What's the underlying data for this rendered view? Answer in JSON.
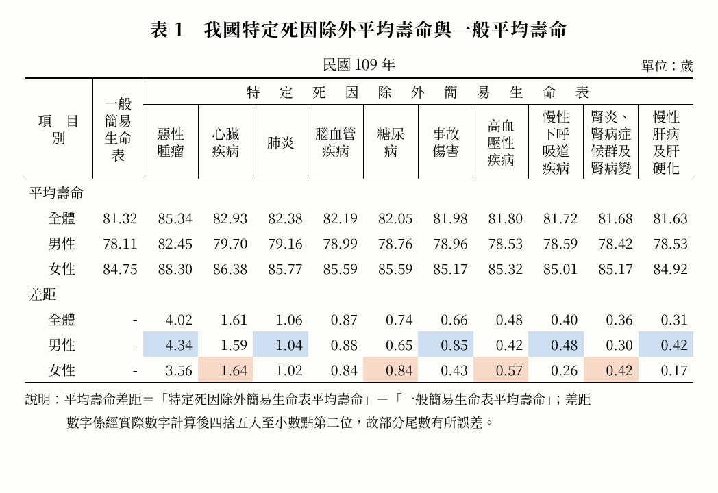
{
  "title": "表 1　我國特定死因除外平均壽命與一般平均壽命",
  "subtitle": "民國 109 年",
  "unit": "單位：歲",
  "rowhead": "項　目　別",
  "col_general": "一般\n簡易\n生命\n表",
  "span_label": "特定死因除外簡易生命表",
  "causes": [
    "惡性\n腫瘤",
    "心臟\n疾病",
    "肺炎",
    "腦血管\n疾病",
    "糖尿\n病",
    "事故\n傷害",
    "高血\n壓性\n疾病",
    "慢性\n下呼\n吸道\n疾病",
    "腎炎、\n腎病症\n候群及\n腎病變",
    "慢性\n肝病\n及肝\n硬化"
  ],
  "section1": "平均壽命",
  "section2": "差距",
  "labels": {
    "all": "全體",
    "m": "男性",
    "f": "女性"
  },
  "life": {
    "all": [
      "81.32",
      "85.34",
      "82.93",
      "82.38",
      "82.19",
      "82.05",
      "81.98",
      "81.80",
      "81.72",
      "81.68",
      "81.63"
    ],
    "m": [
      "78.11",
      "82.45",
      "79.70",
      "79.16",
      "78.99",
      "78.76",
      "78.96",
      "78.53",
      "78.59",
      "78.42",
      "78.53"
    ],
    "f": [
      "84.75",
      "88.30",
      "86.38",
      "85.77",
      "85.59",
      "85.59",
      "85.17",
      "85.32",
      "85.01",
      "85.17",
      "84.92"
    ]
  },
  "gap": {
    "all": [
      "-",
      "4.02",
      "1.61",
      "1.06",
      "0.87",
      "0.74",
      "0.66",
      "0.48",
      "0.40",
      "0.36",
      "0.31"
    ],
    "m": [
      "-",
      "4.34",
      "1.59",
      "1.04",
      "0.88",
      "0.65",
      "0.85",
      "0.42",
      "0.48",
      "0.30",
      "0.42"
    ],
    "f": [
      "-",
      "3.56",
      "1.64",
      "1.02",
      "0.84",
      "0.84",
      "0.43",
      "0.57",
      "0.26",
      "0.42",
      "0.17"
    ]
  },
  "hl": {
    "m_blue": [
      1,
      3,
      6,
      8,
      10
    ],
    "f_orange": [
      2,
      5,
      7,
      9
    ]
  },
  "note_l1": "說明：平均壽命差距＝「特定死因除外簡易生命表平均壽命」－「一般簡易生命表平均壽命」；差距",
  "note_l2": "數字係經實際數字計算後四捨五入至小數點第二位，故部分尾數有所誤差。",
  "colors": {
    "blue": "#cddff0",
    "orange": "#f8d9c8",
    "text": "#000000",
    "bg": "#fdfdfa"
  }
}
